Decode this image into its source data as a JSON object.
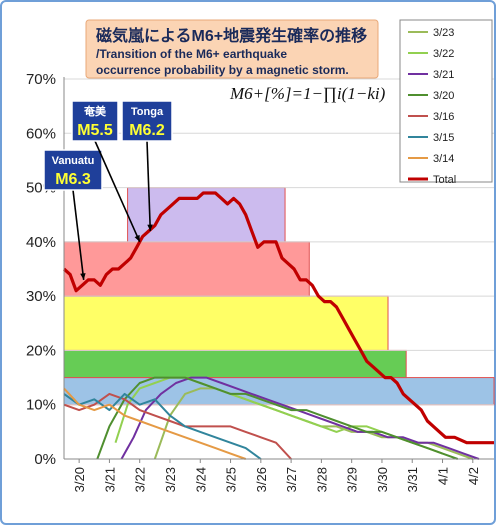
{
  "chart_data": {
    "type": "line",
    "title_jp": "磁気嵐によるM6+地震発生確率の推移",
    "title_en_line1": "/Transition of the M6+ earthquake",
    "title_en_line2": "occurrence probability by a magnetic storm.",
    "formula": "M6+[%]=1−∏i(1−ki)",
    "ylim": [
      0,
      70
    ],
    "y_ticks": [
      "0%",
      "10%",
      "20%",
      "30%",
      "40%",
      "50%",
      "60%",
      "70%"
    ],
    "x_ticks": [
      "3/20",
      "3/21",
      "3/22",
      "3/23",
      "3/24",
      "3/25",
      "3/26",
      "3/27",
      "3/28",
      "3/29",
      "3/30",
      "3/31",
      "4/1",
      "4/2"
    ],
    "xlim": [
      -0.5,
      13.7
    ],
    "annotations": [
      {
        "label_top": "Vanuatu",
        "label_mag": "M6.3",
        "x": 0.15,
        "y": 33
      },
      {
        "label_top": "奄美",
        "label_mag": "M5.5",
        "x": 2.0,
        "y": 40
      },
      {
        "label_top": "Tonga",
        "label_mag": "M6.2",
        "x": 2.35,
        "y": 42
      }
    ],
    "bands": [
      {
        "x0": -0.5,
        "x1": 13.7,
        "y0": 10,
        "y1": 15,
        "color": "#9dc3e6"
      },
      {
        "x0": -0.5,
        "x1": 10.8,
        "y0": 15,
        "y1": 20,
        "color": "#66cc55"
      },
      {
        "x0": -0.5,
        "x1": 10.2,
        "y0": 20,
        "y1": 30,
        "color": "#ffff66"
      },
      {
        "x0": -0.5,
        "x1": 7.6,
        "y0": 30,
        "y1": 40,
        "color": "#ff9999"
      },
      {
        "x0": 1.6,
        "x1": 6.8,
        "y0": 40,
        "y1": 50,
        "color": "#ccbbee"
      }
    ],
    "series": [
      {
        "name": "3/23",
        "color": "#9bbb59",
        "x": [
          2.5,
          3.0,
          3.5,
          4.0,
          4.5,
          5.0,
          5.5,
          6.0,
          6.5,
          7.0,
          7.5,
          8.0,
          8.5,
          9.0,
          9.5,
          10.0,
          10.5,
          11.0,
          11.5,
          12.0,
          12.5,
          13.0
        ],
        "y": [
          0,
          8,
          12,
          13,
          13,
          12,
          11,
          10,
          9,
          8,
          7,
          6,
          6,
          5,
          5,
          4,
          4,
          3,
          3,
          2,
          1,
          0
        ]
      },
      {
        "name": "3/22",
        "color": "#92d050",
        "x": [
          1.2,
          1.6,
          2.0,
          2.5,
          3.0,
          3.5,
          4.0,
          4.5,
          5.0,
          5.5,
          6.0,
          6.5,
          7.0,
          7.5,
          8.0,
          8.5,
          9.0,
          9.5,
          10.0,
          10.5,
          11.0,
          11.5,
          12.0
        ],
        "y": [
          3,
          10,
          13,
          14,
          15,
          15,
          14,
          13,
          12,
          11,
          10,
          9,
          8,
          7,
          6,
          5,
          6,
          6,
          5,
          4,
          3,
          2,
          1
        ]
      },
      {
        "name": "3/21",
        "color": "#7030a0",
        "x": [
          1.4,
          1.8,
          2.2,
          2.7,
          3.2,
          3.7,
          4.2,
          4.7,
          5.2,
          5.7,
          6.2,
          6.7,
          7.2,
          7.7,
          8.2,
          8.7,
          9.2,
          9.7,
          10.2,
          10.7,
          11.2,
          11.7,
          12.2,
          12.7,
          13.2
        ],
        "y": [
          0,
          4,
          9,
          12,
          14,
          15,
          15,
          14,
          13,
          12,
          11,
          10,
          9,
          8,
          7,
          6,
          5,
          5,
          4,
          4,
          3,
          3,
          2,
          1,
          0
        ]
      },
      {
        "name": "3/20",
        "color": "#4f8f2f",
        "x": [
          0.6,
          1.0,
          1.5,
          2.0,
          2.5,
          3.0,
          3.5,
          4.0,
          4.5,
          5.0,
          5.5,
          6.0,
          6.5,
          7.0,
          7.5,
          8.0,
          8.5,
          9.0,
          9.5,
          10.0,
          10.5,
          11.0,
          11.5,
          12.0,
          12.5
        ],
        "y": [
          0,
          6,
          11,
          14,
          15,
          15,
          15,
          14,
          13,
          12,
          12,
          11,
          10,
          9,
          9,
          8,
          7,
          6,
          5,
          5,
          4,
          3,
          2,
          1,
          0
        ]
      },
      {
        "name": "3/16",
        "color": "#c0504d",
        "x": [
          -0.5,
          0.0,
          0.5,
          1.0,
          1.5,
          2.0,
          2.5,
          3.0,
          3.5,
          4.0,
          4.5,
          5.0,
          5.5,
          6.0,
          6.5,
          7.0
        ],
        "y": [
          10,
          9,
          10,
          12,
          11,
          9,
          8,
          7,
          6,
          6,
          6,
          6,
          5,
          4,
          3,
          0
        ]
      },
      {
        "name": "3/15",
        "color": "#31859c",
        "x": [
          -0.5,
          0.0,
          0.5,
          1.0,
          1.5,
          2.0,
          2.5,
          3.0,
          3.5,
          4.0,
          4.5,
          5.0,
          5.5,
          6.0
        ],
        "y": [
          12,
          10,
          11,
          9,
          12,
          10,
          11,
          8,
          6,
          5,
          4,
          3,
          2,
          0
        ]
      },
      {
        "name": "3/14",
        "color": "#e59a45",
        "x": [
          -0.5,
          0.0,
          0.5,
          1.0,
          1.5,
          2.0,
          2.5,
          3.0,
          3.5,
          4.0,
          4.5,
          5.0,
          5.5
        ],
        "y": [
          13,
          10,
          9,
          10,
          8,
          7,
          6,
          5,
          4,
          3,
          2,
          1,
          0
        ]
      },
      {
        "name": "Total",
        "color": "#c00000",
        "x": [
          -0.5,
          -0.3,
          -0.1,
          0.1,
          0.3,
          0.5,
          0.7,
          0.9,
          1.1,
          1.3,
          1.5,
          1.7,
          1.9,
          2.1,
          2.3,
          2.5,
          2.7,
          2.9,
          3.1,
          3.3,
          3.5,
          3.7,
          3.9,
          4.1,
          4.3,
          4.5,
          4.7,
          4.9,
          5.1,
          5.3,
          5.5,
          5.7,
          5.9,
          6.1,
          6.3,
          6.5,
          6.7,
          6.9,
          7.1,
          7.3,
          7.5,
          7.7,
          7.9,
          8.1,
          8.3,
          8.5,
          8.7,
          8.9,
          9.1,
          9.3,
          9.5,
          9.7,
          9.9,
          10.1,
          10.3,
          10.5,
          10.7,
          10.9,
          11.1,
          11.3,
          11.5,
          11.7,
          11.9,
          12.1,
          12.4,
          12.8,
          13.2,
          13.7
        ],
        "y": [
          35,
          34,
          31,
          32,
          33,
          33,
          32,
          34,
          35,
          35,
          36,
          37,
          39,
          41,
          42,
          43,
          45,
          46,
          47,
          48,
          48,
          48,
          48,
          49,
          49,
          49,
          48,
          47,
          48,
          47,
          45,
          42,
          39,
          40,
          40,
          40,
          37,
          36,
          35,
          33,
          33,
          32,
          30,
          29,
          29,
          28,
          26,
          24,
          22,
          20,
          18,
          17,
          16,
          15,
          15,
          14,
          12,
          11,
          10,
          9,
          7,
          6,
          5,
          4,
          4,
          3,
          3,
          3
        ]
      }
    ],
    "legend_position": "top-right"
  }
}
